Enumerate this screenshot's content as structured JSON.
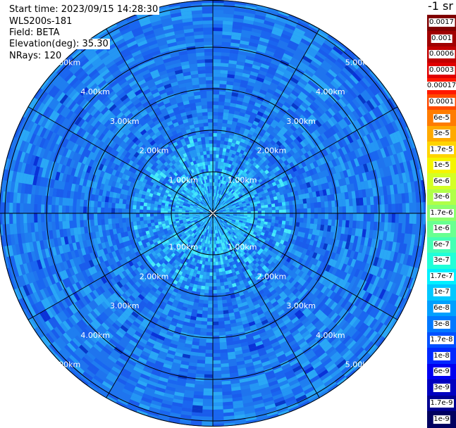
{
  "header": {
    "start_time": "Start time: 2023/09/15 14:28:30",
    "instrument": "WLS200s-181",
    "field": "Field: BETA",
    "elevation": "Elevation(deg): 35.30",
    "nrays": "NRays: 120"
  },
  "unit_label": "-1 sr",
  "ring_labels": [
    "1.00km",
    "2.00km",
    "3.00km",
    "4.00km",
    "5.00km"
  ],
  "colorbar": [
    {
      "label": "0.0017",
      "color": "#800000"
    },
    {
      "label": "0.001",
      "color": "#a00000"
    },
    {
      "label": "0.0006",
      "color": "#c20000"
    },
    {
      "label": "0.0003",
      "color": "#e00000"
    },
    {
      "label": "0.00017",
      "color": "#ff1800"
    },
    {
      "label": "0.0001",
      "color": "#ff4a00"
    },
    {
      "label": "6e-5",
      "color": "#ff7c00"
    },
    {
      "label": "3e-5",
      "color": "#ffaa00"
    },
    {
      "label": "1.7e-5",
      "color": "#ffd400"
    },
    {
      "label": "1e-5",
      "color": "#f5f500"
    },
    {
      "label": "6e-6",
      "color": "#d4ff24"
    },
    {
      "label": "3e-6",
      "color": "#b0ff48"
    },
    {
      "label": "1.7e-6",
      "color": "#8cff6c"
    },
    {
      "label": "1e-6",
      "color": "#68ff90"
    },
    {
      "label": "6e-7",
      "color": "#44ffb4"
    },
    {
      "label": "3e-7",
      "color": "#20ffd8"
    },
    {
      "label": "1.7e-7",
      "color": "#00f0ff"
    },
    {
      "label": "1e-7",
      "color": "#00c8ff"
    },
    {
      "label": "6e-8",
      "color": "#00a0ff"
    },
    {
      "label": "3e-8",
      "color": "#0078ff"
    },
    {
      "label": "1.7e-8",
      "color": "#0050ff"
    },
    {
      "label": "1e-8",
      "color": "#0028ff"
    },
    {
      "label": "6e-9",
      "color": "#0000f0"
    },
    {
      "label": "3e-9",
      "color": "#0000c0"
    },
    {
      "label": "1.7e-9",
      "color": "#000090"
    },
    {
      "label": "1e-9",
      "color": "#000060"
    }
  ]
}
